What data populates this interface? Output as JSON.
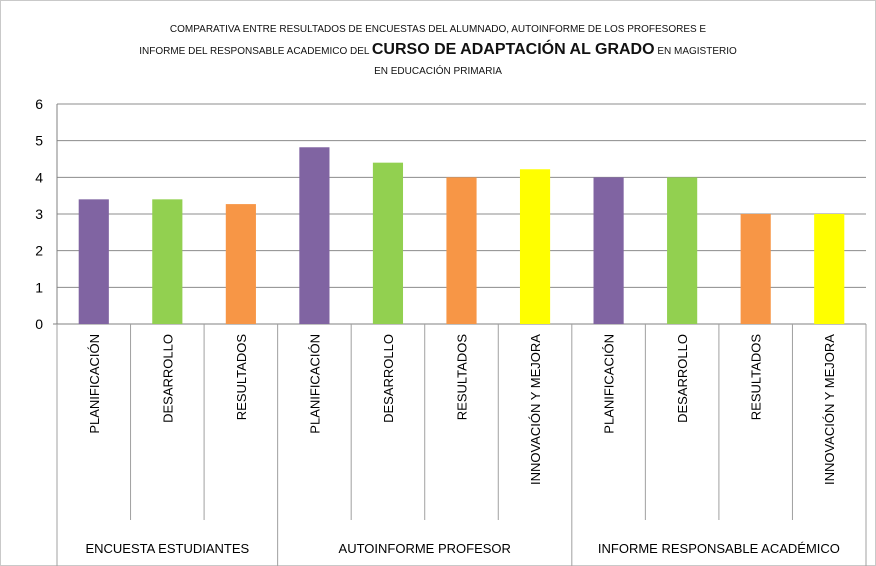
{
  "chart_data": {
    "type": "bar",
    "title_parts": [
      "COMPARATIVA ENTRE RESULTADOS DE ENCUESTAS DEL ALUMNADO, AUTOINFORME DE LOS PROFESORES  E",
      "INFORME DEL RESPONSABLE ACADEMICO DEL ",
      "CURSO DE ADAPTACIÓN AL GRADO",
      " EN MAGISTERIO",
      "EN EDUCACIÓN PRIMARIA"
    ],
    "ylim": [
      0,
      6
    ],
    "yticks": [
      "0",
      "1",
      "2",
      "3",
      "4",
      "5",
      "6"
    ],
    "grid": true,
    "legend": "none",
    "groups": [
      {
        "label": "ENCUESTA ESTUDIANTES",
        "bars": [
          {
            "category": "PLANIFICACIÓN",
            "value": 3.4,
            "color": "#8064a2"
          },
          {
            "category": "DESARROLLO",
            "value": 3.4,
            "color": "#92d050"
          },
          {
            "category": "RESULTADOS",
            "value": 3.27,
            "color": "#f79646"
          }
        ]
      },
      {
        "label": "AUTOINFORME PROFESOR",
        "bars": [
          {
            "category": "PLANIFICACIÓN",
            "value": 4.82,
            "color": "#8064a2"
          },
          {
            "category": "DESARROLLO",
            "value": 4.4,
            "color": "#92d050"
          },
          {
            "category": "RESULTADOS",
            "value": 4.0,
            "color": "#f79646"
          },
          {
            "category": "INNOVACIÓN Y MEJORA",
            "value": 4.22,
            "color": "#ffff00"
          }
        ]
      },
      {
        "label": "INFORME RESPONSABLE ACADÉMICO",
        "bars": [
          {
            "category": "PLANIFICACIÓN",
            "value": 4.0,
            "color": "#8064a2"
          },
          {
            "category": "DESARROLLO",
            "value": 4.0,
            "color": "#92d050"
          },
          {
            "category": "RESULTADOS",
            "value": 3.0,
            "color": "#f79646"
          },
          {
            "category": "INNOVACIÓN Y MEJORA",
            "value": 3.0,
            "color": "#ffff00"
          }
        ]
      }
    ]
  }
}
